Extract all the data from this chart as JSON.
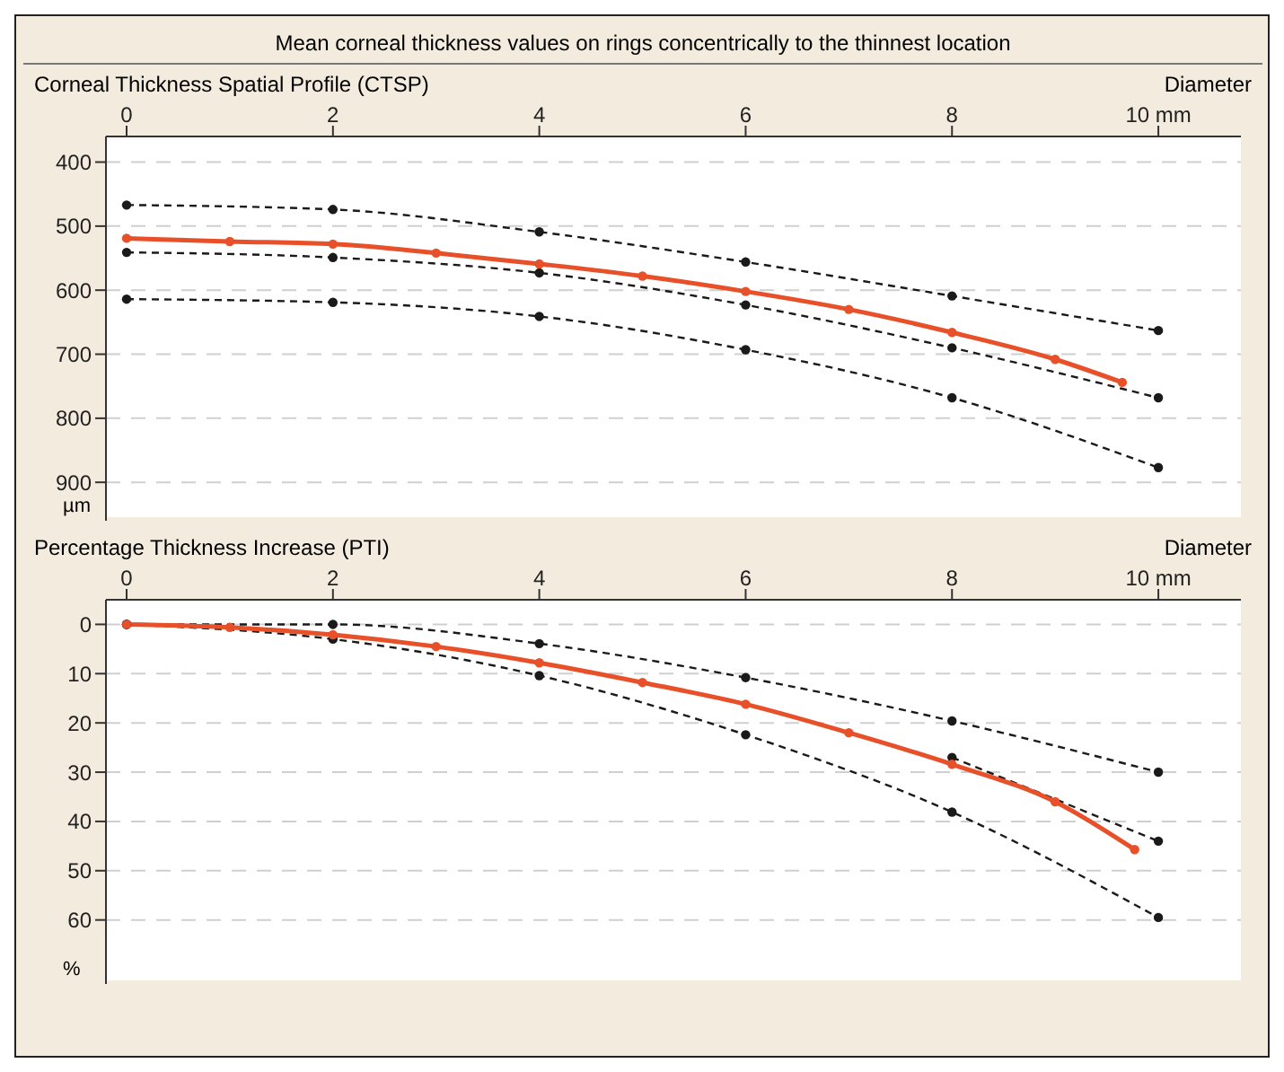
{
  "chart_data": [
    {
      "type": "line",
      "title": "Mean corneal thickness values on rings concentrically to the thinnest location",
      "subtitle": "Corneal Thickness Spatial Profile (CTSP)",
      "xlabel": "Diameter",
      "ylabel": "µm",
      "xlim": [
        -0.2,
        10.8
      ],
      "xticks": [
        0,
        2,
        4,
        6,
        8,
        {
          "value": 10,
          "label": "10  mm"
        }
      ],
      "ylim": [
        960,
        360
      ],
      "yticks": [
        400,
        500,
        600,
        700,
        800,
        900
      ],
      "grid": "y",
      "marker": "circle",
      "line_style": "dashed",
      "series": [
        {
          "color": "#1a1a1a",
          "x": [
            0,
            2,
            4,
            6,
            8,
            10
          ],
          "values": [
            467,
            474,
            509,
            556,
            609,
            663
          ]
        },
        {
          "color": "#1a1a1a",
          "x": [
            0,
            2,
            4,
            6,
            8,
            10
          ],
          "values": [
            541,
            549,
            573,
            623,
            690,
            768
          ]
        },
        {
          "color": "#1a1a1a",
          "x": [
            0,
            2,
            4,
            6,
            8,
            10
          ],
          "values": [
            614,
            619,
            641,
            693,
            768,
            877
          ]
        },
        {
          "color": "#e8502a",
          "line_style": "solid",
          "x": [
            0,
            1,
            2,
            3,
            4,
            5,
            6,
            7,
            8,
            9,
            9.65
          ],
          "values": [
            519,
            524,
            528,
            542,
            559,
            578,
            602,
            630,
            666,
            708,
            744
          ]
        }
      ]
    },
    {
      "type": "line",
      "subtitle": "Percentage Thickness Increase (PTI)",
      "xlabel": "Diameter",
      "ylabel": "%",
      "xlim": [
        -0.2,
        10.8
      ],
      "xticks": [
        0,
        2,
        4,
        6,
        8,
        {
          "value": 10,
          "label": "10  mm"
        }
      ],
      "ylim": [
        73,
        -5
      ],
      "yticks": [
        0,
        10,
        20,
        30,
        40,
        50,
        60
      ],
      "grid": "y",
      "marker": "circle",
      "line_style": "dashed",
      "series": [
        {
          "color": "#1a1a1a",
          "x": [
            0,
            2,
            4,
            6,
            8,
            10
          ],
          "values": [
            0,
            0,
            3.9,
            10.8,
            19.6,
            30
          ]
        },
        {
          "color": "#1a1a1a",
          "x": [
            0,
            2,
            4,
            6,
            8,
            10
          ],
          "values": [
            0,
            null,
            null,
            null,
            27,
            44
          ]
        },
        {
          "color": "#1a1a1a",
          "x": [
            0,
            2,
            4,
            6,
            8,
            10
          ],
          "values": [
            0,
            3,
            10.4,
            22.4,
            38.1,
            59.5
          ]
        },
        {
          "color": "#e8502a",
          "line_style": "solid",
          "x": [
            0,
            1,
            2,
            3,
            4,
            5,
            6,
            7,
            8,
            9,
            9.77
          ],
          "values": [
            0,
            0.6,
            2.1,
            4.5,
            7.8,
            11.8,
            16.2,
            22,
            28.4,
            36,
            45.7
          ]
        }
      ]
    }
  ]
}
